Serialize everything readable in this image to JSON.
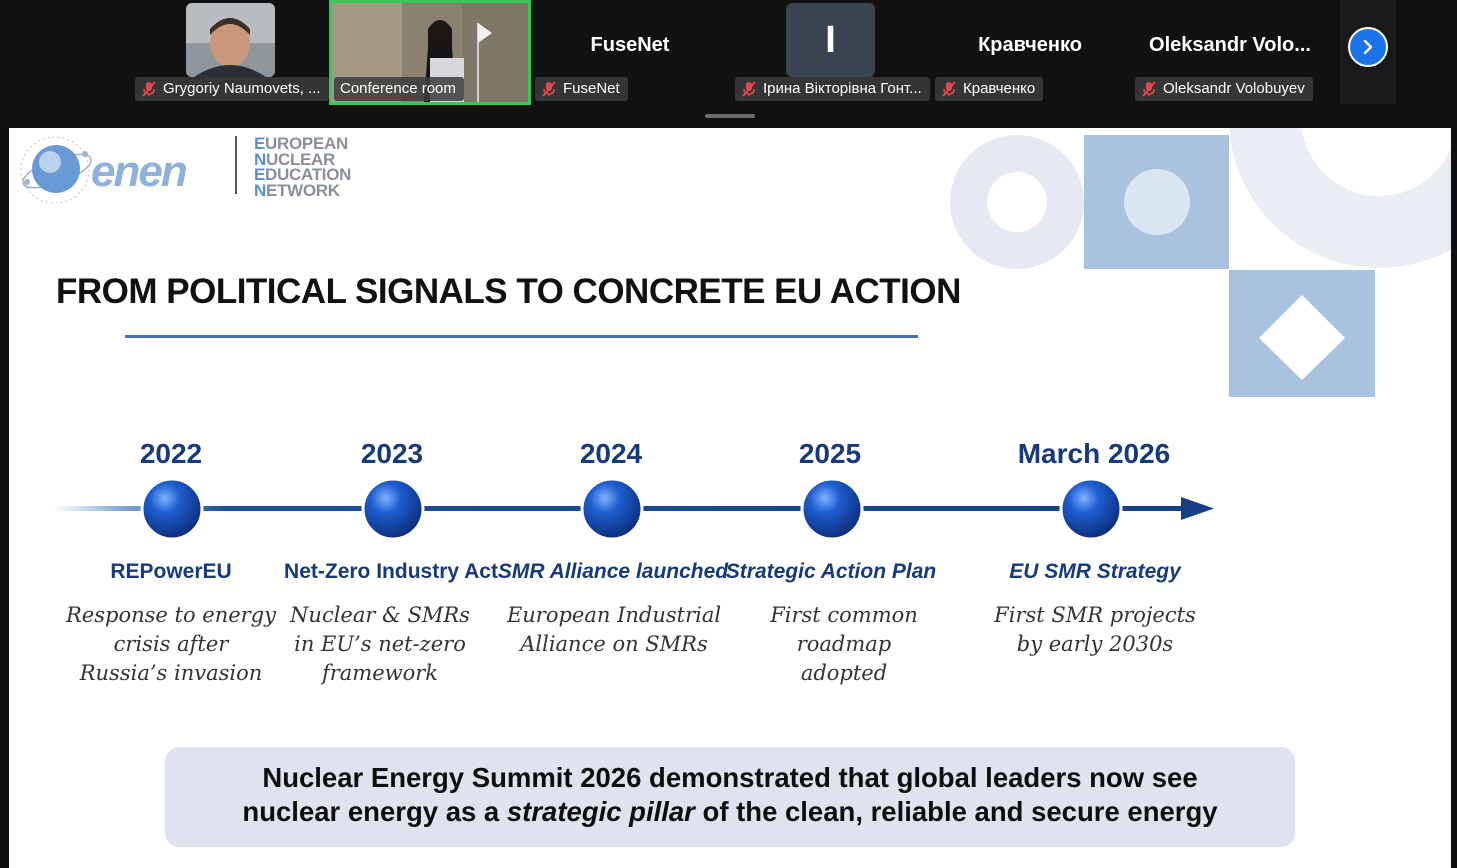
{
  "participants": [
    {
      "name": "Grygoriy Naumovets, ...",
      "has_video": true,
      "muted": true
    },
    {
      "name": "Conference room",
      "has_video": true,
      "muted": false,
      "active_speaker": true
    },
    {
      "name": "FuseNet",
      "display_name": "FuseNet",
      "has_video": false,
      "muted": true
    },
    {
      "name": "Ірина Вікторівна Гонт...",
      "initial": "I",
      "has_video": false,
      "muted": true
    },
    {
      "name": "Кравченко",
      "display_name": "Кравченко",
      "has_video": false,
      "muted": true
    },
    {
      "name": "Oleksandr Volobuyev",
      "display_name": "Oleksandr  Volo...",
      "has_video": false,
      "muted": true
    }
  ],
  "colors": {
    "accent": "#1a73e8",
    "active_speaker_border": "#34c759",
    "slide_navy": "#173a7a",
    "summary_bg": "#dfe3f0",
    "deco_light": "#e6e8f3",
    "deco_blue": "#a9c2de"
  },
  "icons": {
    "mic_off": "mic-off-icon",
    "next": "chevron-right-icon"
  },
  "slide": {
    "org_name_lines": [
      "EUROPEAN",
      "NUCLEAR",
      "EDUCATION",
      "NETWORK"
    ],
    "logo_text": "enen",
    "title": "FROM POLITICAL SIGNALS TO CONCRETE EU ACTION",
    "timeline": [
      {
        "year": "2022",
        "title": "REPowerEU",
        "desc": [
          "Response to energy",
          "crisis after",
          "Russia’s invasion"
        ]
      },
      {
        "year": "2023",
        "title": "Net-Zero Industry Act",
        "desc": [
          "Nuclear & SMRs",
          "in EU’s net-zero",
          "framework"
        ]
      },
      {
        "year": "2024",
        "title": "SMR Alliance launched",
        "desc": [
          "European Industrial",
          "Alliance on SMRs"
        ]
      },
      {
        "year": "2025",
        "title": "Strategic Action Plan",
        "desc": [
          "First common roadmap",
          "adopted"
        ]
      },
      {
        "year": "March 2026",
        "title": "EU SMR Strategy",
        "desc": [
          "First SMR projects",
          "by early 2030s"
        ]
      }
    ],
    "summary": {
      "line1": "Nuclear Energy Summit 2026 demonstrated that global leaders now see",
      "line2_pre": "nuclear energy as a ",
      "line2_em": "strategic pillar",
      "line2_post": " of the clean, reliable and secure energy"
    }
  }
}
